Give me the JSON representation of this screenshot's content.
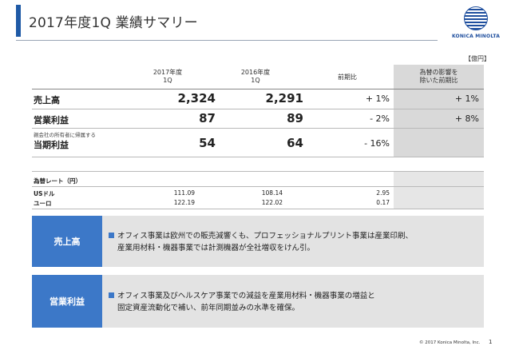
{
  "header": {
    "title": "2017年度1Q 業績サマリー",
    "logo_text": "KONICA MINOLTA"
  },
  "unit": "【億円】",
  "table": {
    "columns": {
      "fy2017": [
        "2017年度",
        "1Q"
      ],
      "fy2016": [
        "2016年度",
        "1Q"
      ],
      "yoy": "前期比",
      "fx_excluded": [
        "為替の影響を",
        "除いた前期比"
      ]
    },
    "rows": [
      {
        "label": "売上高",
        "note": "",
        "fy2017": "2,324",
        "fy2016": "2,291",
        "yoy": "+ 1%",
        "fx_excluded": "+ 1%"
      },
      {
        "label": "営業利益",
        "note": "",
        "fy2017": "87",
        "fy2016": "89",
        "yoy": "- 2%",
        "fx_excluded": "+ 8%"
      },
      {
        "label": "当期利益",
        "note": "親会社の所有者に帰属する",
        "fy2017": "54",
        "fy2016": "64",
        "yoy": "- 16%",
        "fx_excluded": ""
      }
    ]
  },
  "fx": {
    "title": "為替レート（円）",
    "rows": [
      {
        "label": "USドル",
        "fy2017": "111.09",
        "fy2016": "108.14",
        "diff": "2.95"
      },
      {
        "label": "ユーロ",
        "fy2017": "122.19",
        "fy2016": "122.02",
        "diff": "0.17"
      }
    ]
  },
  "summary": [
    {
      "heading": "売上高",
      "lines": [
        "オフィス事業は欧州での販売減響くも、プロフェッショナルプリント事業は産業印刷、",
        "産業用材料・機器事業では計測機器が全社増収をけん引。"
      ]
    },
    {
      "heading": "営業利益",
      "lines": [
        "オフィス事業及びヘルスケア事業での減益を産業用材料・機器事業の増益と",
        "固定資産流動化で補い、前年同期並みの水準を確保。"
      ]
    }
  ],
  "footer": {
    "copyright": "© 2017 Konica Minolta, Inc.",
    "page": "1"
  },
  "colors": {
    "accent": "#3c78c8",
    "title_bar": "#1f5aa6",
    "shade": "#d9d9d9",
    "box_bg": "#e3e3e3"
  }
}
